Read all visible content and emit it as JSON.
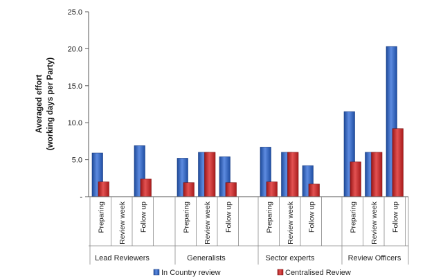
{
  "chart_data": {
    "type": "bar",
    "title": "",
    "ylabel_line1": "Averaged effort",
    "ylabel_line2": "(working days per Party)",
    "ylim": [
      0,
      25
    ],
    "yticks": [
      "-",
      "5.0",
      "10.0",
      "15.0",
      "20.0",
      "25.0"
    ],
    "groups": [
      {
        "name": "Lead Reviewers",
        "categories": [
          "Preparing",
          "Review week",
          "Follow up"
        ]
      },
      {
        "name": "Generalists",
        "categories": [
          "Preparing",
          "Review week",
          "Follow up"
        ]
      },
      {
        "name": "Sector experts",
        "categories": [
          "Preparing",
          "Review week",
          "Follow up"
        ]
      },
      {
        "name": "Review Officers",
        "categories": [
          "Preparing",
          "Review week",
          "Follow up"
        ]
      }
    ],
    "series": [
      {
        "name": "In Country review",
        "color": "#2f5fb8",
        "values": [
          5.9,
          null,
          6.9,
          5.2,
          6.0,
          5.4,
          6.7,
          6.0,
          4.2,
          11.5,
          6.0,
          20.3
        ]
      },
      {
        "name": "Centralised Review",
        "color": "#c42a2a",
        "values": [
          2.0,
          null,
          2.4,
          1.9,
          6.0,
          1.9,
          2.0,
          6.0,
          1.7,
          4.7,
          6.0,
          9.2
        ]
      }
    ],
    "grid": false,
    "legend_position": "bottom"
  }
}
